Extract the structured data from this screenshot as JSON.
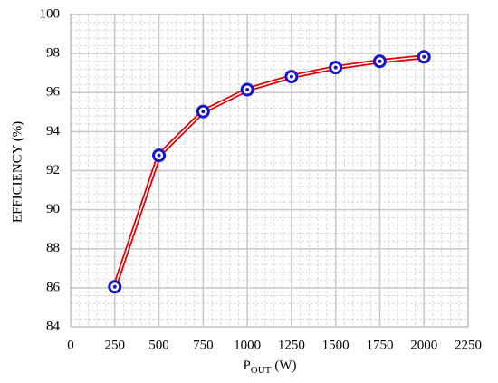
{
  "chart_data": {
    "type": "line",
    "x_label": {
      "main": "P",
      "sub": "OUT",
      "unit": "(W)"
    },
    "y_label": "EFFICIENCY (%)",
    "x": [
      250,
      500,
      750,
      1000,
      1250,
      1500,
      1750,
      2000
    ],
    "series": [
      {
        "color": "#e00000",
        "marker_color": "#1414d2",
        "values": [
          86.05,
          92.78,
          95.03,
          96.15,
          96.82,
          97.28,
          97.6,
          97.83
        ]
      }
    ],
    "xlim": [
      0,
      2250
    ],
    "xticks": [
      0,
      250,
      500,
      750,
      1000,
      1250,
      1500,
      1750,
      2000,
      2250
    ],
    "ylim": [
      84,
      100
    ],
    "yticks": [
      84,
      86,
      88,
      90,
      92,
      94,
      96,
      98,
      100
    ],
    "grid": true,
    "minor_divisions": 5
  }
}
